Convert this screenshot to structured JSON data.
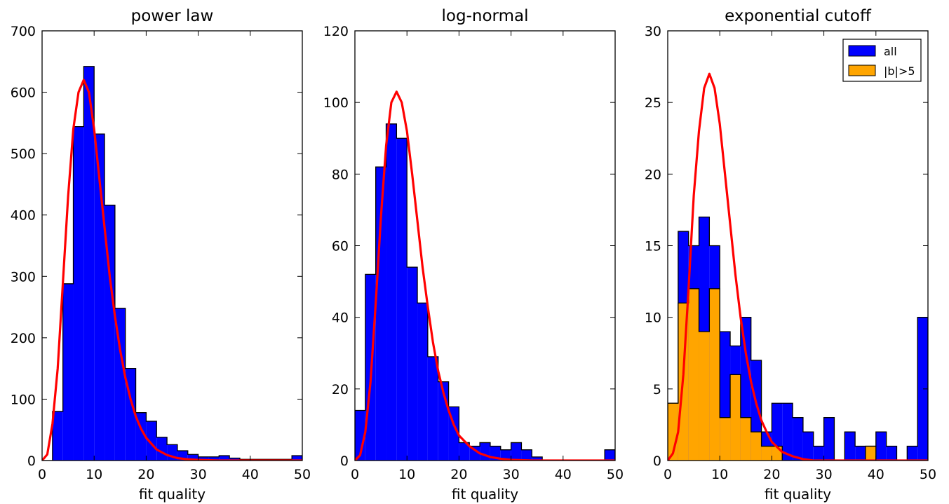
{
  "figure": {
    "background": "#ffffff"
  },
  "chart_data": [
    {
      "type": "histogram",
      "title": "power law",
      "xlabel": "fit quality",
      "ylabel": "",
      "xlim": [
        0,
        50
      ],
      "ylim": [
        0,
        700
      ],
      "xticks": [
        0,
        10,
        20,
        30,
        40,
        50
      ],
      "yticks": [
        0,
        100,
        200,
        300,
        400,
        500,
        600,
        700
      ],
      "grid": false,
      "bin_edges": [
        0,
        2,
        4,
        6,
        8,
        10,
        12,
        14,
        16,
        18,
        20,
        22,
        24,
        26,
        28,
        30,
        32,
        34,
        36,
        38,
        40,
        42,
        44,
        46,
        48,
        50
      ],
      "series": [
        {
          "kind": "hist",
          "color": "#0000ff",
          "values": [
            0,
            80,
            288,
            544,
            642,
            532,
            416,
            248,
            150,
            78,
            64,
            38,
            26,
            16,
            10,
            6,
            6,
            8,
            4,
            2,
            2,
            2,
            2,
            2,
            8
          ]
        },
        {
          "kind": "curve",
          "color": "#ff0000",
          "x": [
            0,
            1,
            2,
            3,
            4,
            5,
            6,
            7,
            8,
            9,
            10,
            11,
            12,
            13,
            14,
            15,
            16,
            17,
            18,
            19,
            20,
            22,
            24,
            26,
            28,
            30,
            34,
            40,
            50
          ],
          "y": [
            0,
            10,
            60,
            150,
            290,
            430,
            540,
            600,
            620,
            600,
            540,
            460,
            380,
            300,
            235,
            180,
            135,
            100,
            72,
            52,
            37,
            18,
            9,
            4,
            2,
            1,
            0,
            0,
            0
          ]
        }
      ]
    },
    {
      "type": "histogram",
      "title": "log-normal",
      "xlabel": "fit quality",
      "ylabel": "",
      "xlim": [
        0,
        50
      ],
      "ylim": [
        0,
        120
      ],
      "xticks": [
        0,
        10,
        20,
        30,
        40,
        50
      ],
      "yticks": [
        0,
        20,
        40,
        60,
        80,
        100,
        120
      ],
      "grid": false,
      "bin_edges": [
        0,
        2,
        4,
        6,
        8,
        10,
        12,
        14,
        16,
        18,
        20,
        22,
        24,
        26,
        28,
        30,
        32,
        34,
        36,
        38,
        40,
        42,
        44,
        46,
        48,
        50
      ],
      "series": [
        {
          "kind": "hist",
          "color": "#0000ff",
          "values": [
            14,
            52,
            82,
            94,
            90,
            54,
            44,
            29,
            22,
            15,
            5,
            4,
            5,
            4,
            3,
            5,
            3,
            1,
            0,
            0,
            0,
            0,
            0,
            0,
            3
          ]
        },
        {
          "kind": "curve",
          "color": "#ff0000",
          "x": [
            0,
            1,
            2,
            3,
            4,
            5,
            6,
            7,
            8,
            9,
            10,
            11,
            12,
            13,
            14,
            15,
            16,
            17,
            18,
            19,
            20,
            22,
            24,
            26,
            28,
            30,
            34,
            40,
            50
          ],
          "y": [
            0,
            1.5,
            8,
            22,
            44,
            68,
            88,
            100,
            103,
            100,
            92,
            80,
            67,
            54,
            43,
            33,
            25,
            19,
            14,
            10,
            7,
            4,
            2,
            1,
            0.5,
            0.2,
            0,
            0,
            0
          ]
        }
      ]
    },
    {
      "type": "histogram",
      "title": "exponential cutoff",
      "xlabel": "fit quality",
      "ylabel": "",
      "xlim": [
        0,
        50
      ],
      "ylim": [
        0,
        30
      ],
      "xticks": [
        0,
        10,
        20,
        30,
        40,
        50
      ],
      "yticks": [
        0,
        5,
        10,
        15,
        20,
        25,
        30
      ],
      "grid": false,
      "legend": {
        "placement": "top-right"
      },
      "bin_edges": [
        0,
        2,
        4,
        6,
        8,
        10,
        12,
        14,
        16,
        18,
        20,
        22,
        24,
        26,
        28,
        30,
        32,
        34,
        36,
        38,
        40,
        42,
        44,
        46,
        48,
        50
      ],
      "series": [
        {
          "kind": "hist",
          "name": "all",
          "color": "#0000ff",
          "values": [
            4,
            16,
            15,
            17,
            15,
            9,
            8,
            10,
            7,
            2,
            4,
            4,
            3,
            2,
            1,
            3,
            0,
            2,
            1,
            1,
            2,
            1,
            0,
            1,
            10
          ]
        },
        {
          "kind": "hist",
          "name": "|b|>5",
          "color": "#ffa500",
          "values": [
            4,
            11,
            12,
            9,
            12,
            3,
            6,
            3,
            2,
            1,
            1,
            0,
            0,
            0,
            0,
            0,
            0,
            0,
            0,
            1,
            0,
            0,
            0,
            0,
            0
          ]
        },
        {
          "kind": "curve",
          "color": "#ff0000",
          "x": [
            0,
            1,
            2,
            3,
            4,
            5,
            6,
            7,
            8,
            9,
            10,
            11,
            12,
            13,
            14,
            15,
            16,
            17,
            18,
            19,
            20,
            22,
            24,
            26,
            28,
            30,
            34,
            40,
            50
          ],
          "y": [
            0,
            0.5,
            2,
            6,
            12,
            18.5,
            23,
            26,
            27,
            26,
            23.5,
            20,
            16.5,
            13,
            10,
            7.5,
            5.5,
            4,
            2.8,
            2,
            1.3,
            0.6,
            0.3,
            0.1,
            0,
            0,
            0,
            0,
            0
          ]
        }
      ]
    }
  ]
}
